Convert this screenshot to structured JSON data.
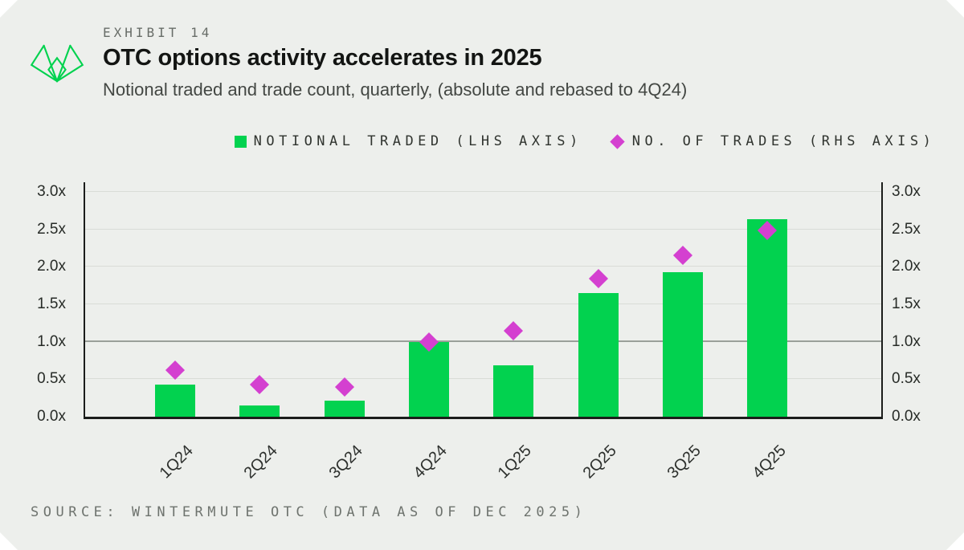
{
  "header": {
    "exhibit_label": "EXHIBIT 14",
    "title": "OTC options activity accelerates in 2025",
    "subtitle": "Notional traded and trade count, quarterly, (absolute and rebased to 4Q24)"
  },
  "legend": [
    {
      "label": "NOTIONAL TRADED (LHS AXIS)",
      "marker": "square",
      "color": "#02d24f"
    },
    {
      "label": "NO. OF TRADES (RHS AXIS)",
      "marker": "diamond",
      "color": "#d440d0"
    }
  ],
  "source": "SOURCE: WINTERMUTE OTC (DATA AS OF DEC 2025)",
  "logo": {
    "name": "wintermute-logo",
    "color": "#00d24e"
  },
  "colors": {
    "background": "#edefec",
    "bar_green": "#02d24f",
    "diamond_magenta": "#d440d0",
    "gridline": "#d9dcd7",
    "gridline_major": "#9aa09a",
    "axis": "#1b1d1b"
  },
  "chart_data": {
    "type": "bar",
    "subtype": "combo bar + diamond scatter, dual axis (both rebased multiples)",
    "categories": [
      "1Q24",
      "2Q24",
      "3Q24",
      "4Q24",
      "1Q25",
      "2Q25",
      "3Q25",
      "4Q25"
    ],
    "series": [
      {
        "name": "Notional traded (LHS axis)",
        "type": "bar",
        "color": "#02d24f",
        "values": [
          0.43,
          0.15,
          0.21,
          1.0,
          0.69,
          1.65,
          1.93,
          2.64
        ]
      },
      {
        "name": "No. of trades (RHS axis)",
        "type": "scatter-diamond",
        "color": "#d440d0",
        "values": [
          0.62,
          0.43,
          0.4,
          1.0,
          1.15,
          1.84,
          2.15,
          2.49
        ]
      }
    ],
    "y_ticks": [
      {
        "label": "0.0x",
        "value": 0
      },
      {
        "label": "0.5x",
        "value": 0.5
      },
      {
        "label": "1.0x",
        "value": 1
      },
      {
        "label": "1.5x",
        "value": 1.5
      },
      {
        "label": "2.0x",
        "value": 2
      },
      {
        "label": "2.5x",
        "value": 2.5
      },
      {
        "label": "3.0x",
        "value": 3
      }
    ],
    "ylim": [
      0,
      3.13
    ],
    "highlight_gridline": 1,
    "grid": true,
    "dual_axis_mirrored": true,
    "legend_position": "top-center",
    "x_label_rotation": -45
  }
}
